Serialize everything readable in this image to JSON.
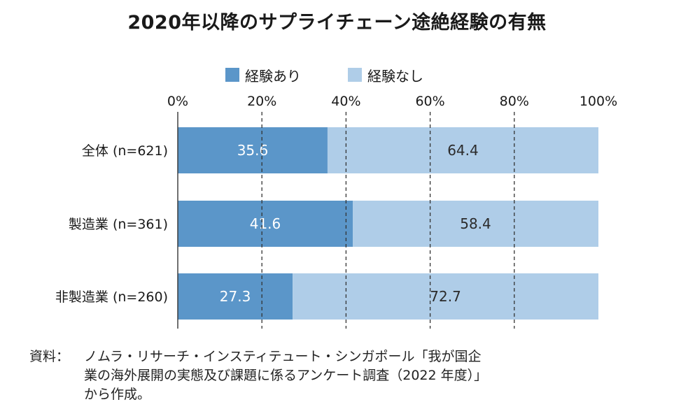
{
  "title": "2020年以降のサプライチェーン途絶経験の有無",
  "legend": [
    {
      "label": "経験あり",
      "color": "#5b96c9"
    },
    {
      "label": "経験なし",
      "color": "#afcde8"
    }
  ],
  "chart_data": {
    "type": "bar",
    "orientation": "horizontal",
    "stacked": true,
    "categories": [
      "全体 (n=621)",
      "製造業 (n=361)",
      "非製造業 (n=260)"
    ],
    "series": [
      {
        "name": "経験あり",
        "values": [
          35.6,
          41.6,
          27.3
        ],
        "color": "#5b96c9"
      },
      {
        "name": "経験なし",
        "values": [
          64.4,
          58.4,
          72.7
        ],
        "color": "#afcde8"
      }
    ],
    "xlim": [
      0,
      100
    ],
    "xticks": [
      "0%",
      "20%",
      "40%",
      "60%",
      "80%",
      "100%"
    ],
    "grid": "dashed vertical",
    "legend_position": "top"
  },
  "source": {
    "label": "資料：",
    "lines": [
      "ノムラ・リサーチ・インスティテュート・シンガポール「我が国企",
      "業の海外展開の実態及び課題に係るアンケート調査（2022 年度）」",
      "から作成。"
    ]
  }
}
